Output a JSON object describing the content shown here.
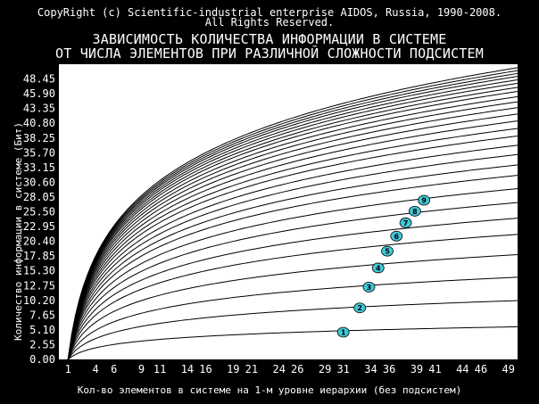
{
  "header": {
    "copyright_line1": "CopyRight (c) Scientific-industrial enterprise AIDOS, Russia, 1990-2008.",
    "copyright_line2": "All Rights Reserved."
  },
  "chart_data": {
    "type": "line",
    "title_line1": "ЗАВИСИМОСТЬ КОЛИЧЕСТВА ИНФОРМАЦИИ В СИСТЕМЕ",
    "title_line2": "ОТ ЧИСЛА ЭЛЕМЕНТОВ ПРИ РАЗЛИЧНОЙ СЛОЖНОСТИ ПОДСИСТЕМ",
    "xlabel": "Кол-во элементов в системе на 1-м уровне иерархии (без подсистем)",
    "ylabel": "Количество информации в системе (Бит)",
    "x_ticks": [
      1,
      4,
      6,
      9,
      11,
      14,
      16,
      19,
      21,
      24,
      26,
      29,
      31,
      34,
      36,
      39,
      41,
      44,
      46,
      49
    ],
    "y_ticks": [
      "0.00",
      "2.55",
      "5.10",
      "7.65",
      "10.20",
      "12.75",
      "15.30",
      "17.85",
      "20.40",
      "22.95",
      "25.50",
      "28.05",
      "30.60",
      "33.15",
      "35.70",
      "38.25",
      "40.80",
      "43.35",
      "45.90",
      "48.45"
    ],
    "xlim": [
      0,
      50
    ],
    "ylim": [
      0,
      51
    ],
    "x_end": 50,
    "series": [
      {
        "end": 5.64
      },
      {
        "end": 10.16
      },
      {
        "end": 14.2
      },
      {
        "end": 18.1
      },
      {
        "end": 21.6
      },
      {
        "end": 24.4
      },
      {
        "end": 27.1
      },
      {
        "end": 29.5
      },
      {
        "end": 31.8
      },
      {
        "end": 33.6
      },
      {
        "end": 35.4
      },
      {
        "end": 37.0
      },
      {
        "end": 38.6
      },
      {
        "end": 39.9
      },
      {
        "end": 41.2
      },
      {
        "end": 42.4
      },
      {
        "end": 43.5
      },
      {
        "end": 44.5
      },
      {
        "end": 45.4
      },
      {
        "end": 46.3
      },
      {
        "end": 47.0
      },
      {
        "end": 47.7
      },
      {
        "end": 48.3
      },
      {
        "end": 48.9
      },
      {
        "end": 49.4
      },
      {
        "end": 49.9
      },
      {
        "end": 50.4
      }
    ],
    "markers": [
      {
        "label": "1",
        "x": 31,
        "y": 4.7
      },
      {
        "label": "2",
        "x": 32.8,
        "y": 8.9
      },
      {
        "label": "3",
        "x": 33.8,
        "y": 12.5
      },
      {
        "label": "4",
        "x": 34.8,
        "y": 15.8
      },
      {
        "label": "5",
        "x": 35.8,
        "y": 18.7
      },
      {
        "label": "6",
        "x": 36.8,
        "y": 21.3
      },
      {
        "label": "7",
        "x": 37.8,
        "y": 23.6
      },
      {
        "label": "8",
        "x": 38.8,
        "y": 25.6
      },
      {
        "label": "9",
        "x": 39.8,
        "y": 27.5
      }
    ],
    "line_color": "#000000",
    "plot_bg": "#ffffff",
    "marker_color": "#40c8d8",
    "grid": false
  }
}
